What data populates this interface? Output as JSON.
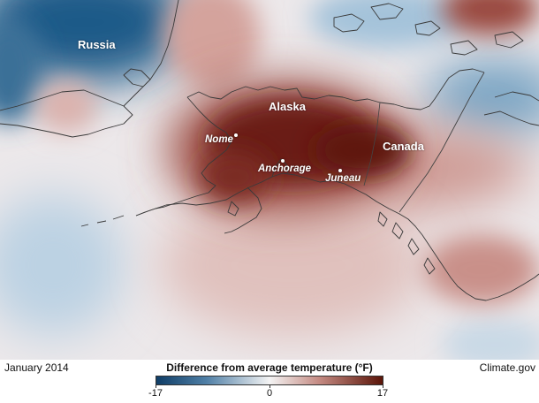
{
  "map": {
    "places": [
      {
        "key": "russia",
        "label": "Russia"
      },
      {
        "key": "alaska",
        "label": "Alaska"
      },
      {
        "key": "canada",
        "label": "Canada"
      }
    ],
    "cities": [
      {
        "key": "nome",
        "label": "Nome"
      },
      {
        "key": "anchorage",
        "label": "Anchorage"
      },
      {
        "key": "juneau",
        "label": "Juneau"
      }
    ]
  },
  "footer": {
    "date": "January 2014",
    "source": "Climate.gov"
  },
  "legend": {
    "title": "Difference from average temperature (°F)",
    "min_label": "-17",
    "mid_label": "0",
    "max_label": "17",
    "colors": {
      "cold": "#0f3d66",
      "neutral": "#f4f4f4",
      "warm": "#5a1408"
    }
  }
}
